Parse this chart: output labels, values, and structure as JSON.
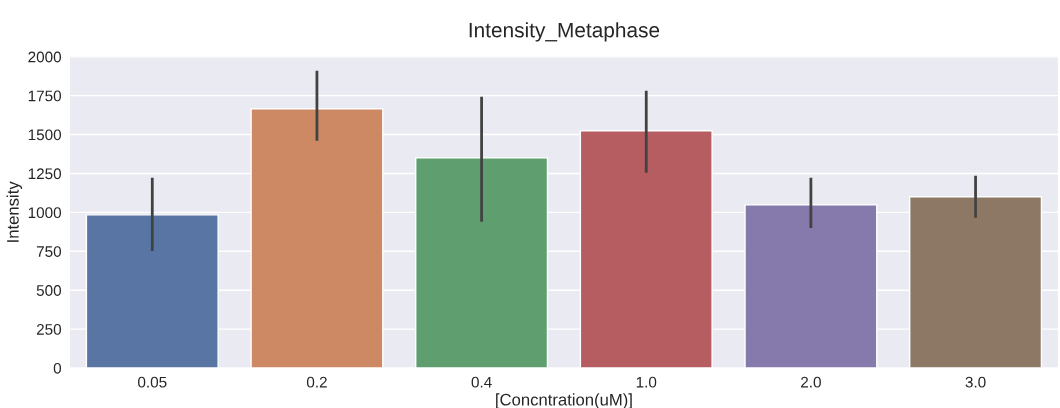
{
  "chart_data": {
    "type": "bar",
    "title": "Intensity_Metaphase",
    "xlabel": "[Concntration(uM)]",
    "ylabel": "Intensity",
    "categories": [
      "0.05",
      "0.2",
      "0.4",
      "1.0",
      "2.0",
      "3.0"
    ],
    "values": [
      984,
      1666,
      1350,
      1524,
      1048,
      1100
    ],
    "errors": [
      [
        752,
        1222
      ],
      [
        1460,
        1910
      ],
      [
        939,
        1743
      ],
      [
        1254,
        1781
      ],
      [
        900,
        1222
      ],
      [
        965,
        1235
      ]
    ],
    "colors": [
      "#5975a4",
      "#cc8963",
      "#5f9e6e",
      "#b55d60",
      "#857aab",
      "#8d7866"
    ],
    "ylim": [
      0,
      2000
    ],
    "yticks": [
      0,
      250,
      500,
      750,
      1000,
      1250,
      1500,
      1750,
      2000
    ],
    "grid": "y"
  }
}
